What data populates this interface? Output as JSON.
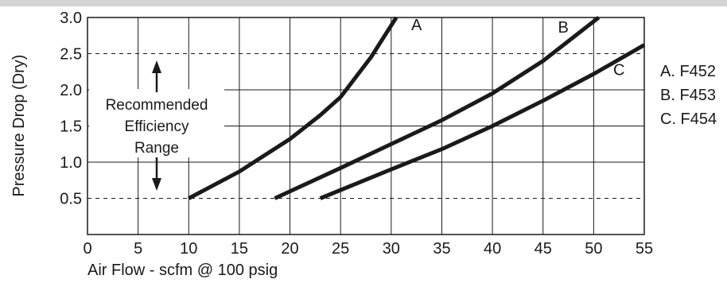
{
  "chart_data": {
    "type": "line",
    "title": "",
    "xlabel": "Air Flow - scfm @ 100 psig",
    "ylabel": "Pressure Drop (Dry)",
    "xlim": [
      0,
      55
    ],
    "ylim": [
      0,
      3.0
    ],
    "x_ticks": [
      "0",
      "5",
      "10",
      "15",
      "20",
      "25",
      "30",
      "35",
      "40",
      "45",
      "50",
      "55"
    ],
    "y_ticks": [
      "0.5",
      "1.0",
      "1.5",
      "2.0",
      "2.5",
      "3.0"
    ],
    "grid": true,
    "dashed_reference_lines": [
      0.5,
      2.5
    ],
    "series": [
      {
        "label": "A",
        "points": [
          [
            10,
            0.5
          ],
          [
            15,
            0.87
          ],
          [
            20,
            1.32
          ],
          [
            23,
            1.65
          ],
          [
            25,
            1.9
          ],
          [
            28,
            2.45
          ],
          [
            30.5,
            3.0
          ]
        ]
      },
      {
        "label": "B",
        "points": [
          [
            18.5,
            0.5
          ],
          [
            25,
            0.92
          ],
          [
            30,
            1.25
          ],
          [
            35,
            1.58
          ],
          [
            40,
            1.95
          ],
          [
            45,
            2.4
          ],
          [
            50.5,
            3.0
          ]
        ]
      },
      {
        "label": "C",
        "points": [
          [
            23,
            0.5
          ],
          [
            30,
            0.9
          ],
          [
            35,
            1.18
          ],
          [
            40,
            1.5
          ],
          [
            45,
            1.85
          ],
          [
            50,
            2.22
          ],
          [
            55,
            2.62
          ]
        ]
      }
    ],
    "annotation": {
      "lines": [
        "Recommended",
        "Efficiency",
        "Range"
      ]
    },
    "legend": {
      "position": "right",
      "entries": [
        "A. F452",
        "B. F453",
        "C. F454"
      ]
    }
  }
}
